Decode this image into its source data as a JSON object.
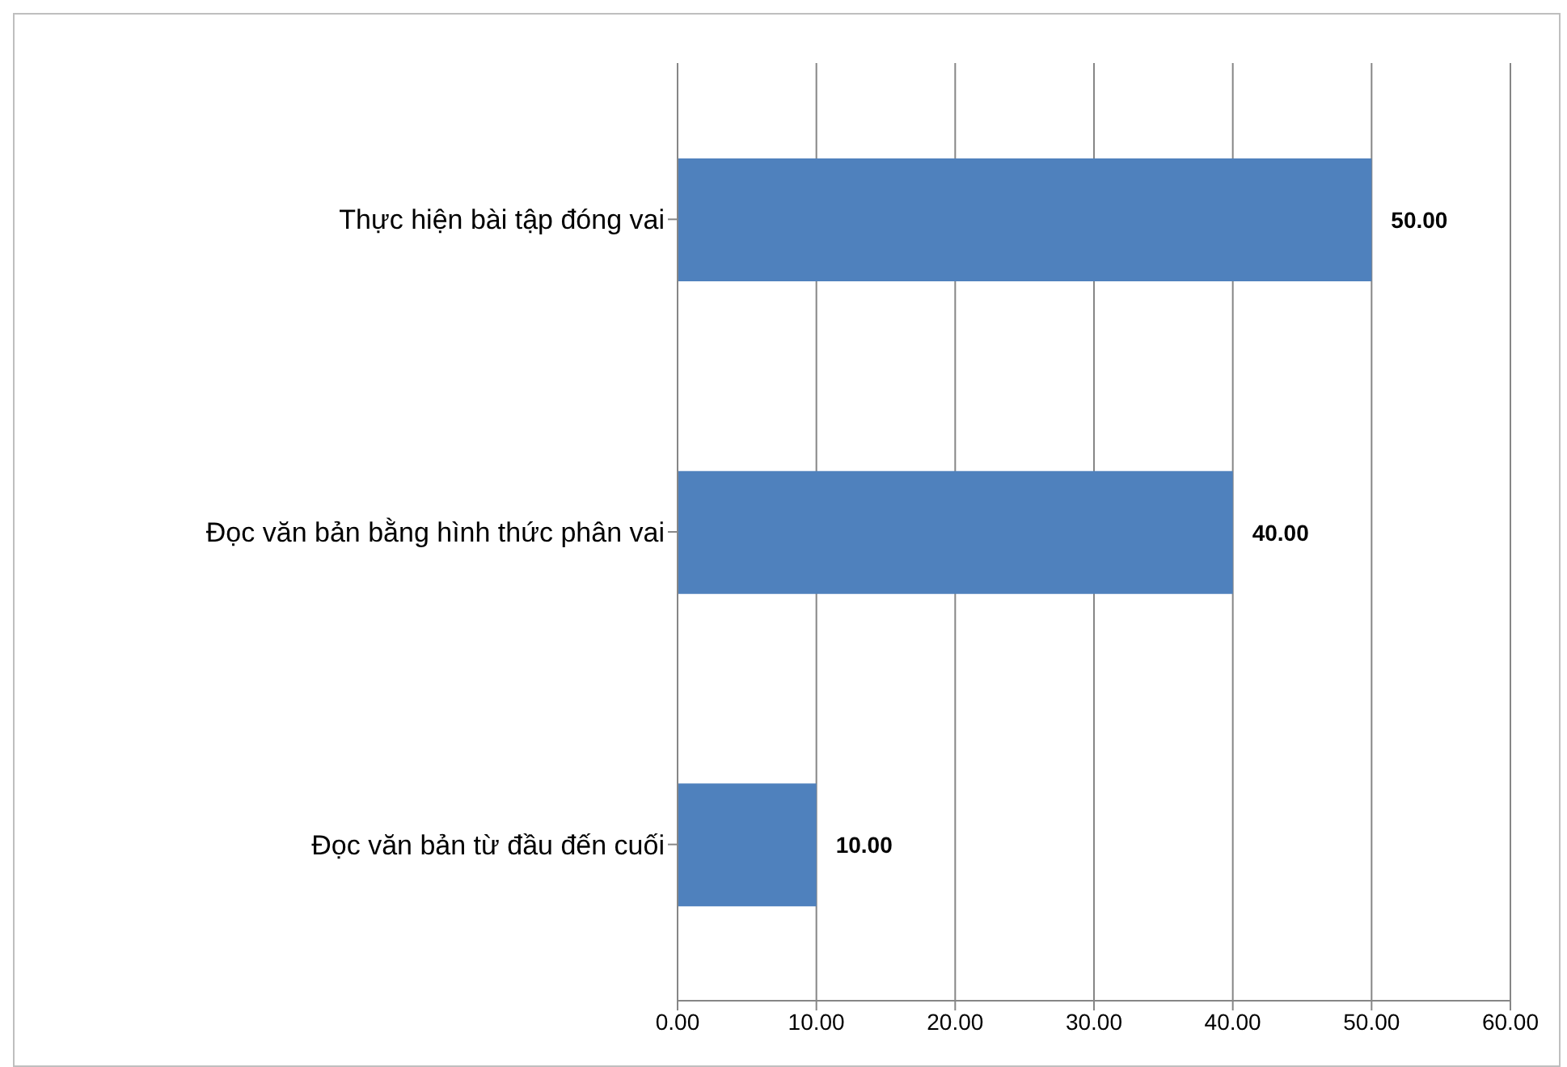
{
  "chart_data": {
    "type": "bar",
    "orientation": "horizontal",
    "categories": [
      "Thực hiện bài tập đóng vai",
      "Đọc văn bản bằng hình thức phân vai",
      "Đọc văn bản từ đầu đến cuối"
    ],
    "values": [
      50,
      40,
      10
    ],
    "color": "#4f81bd",
    "value_labels": [
      "50.00",
      "40.00",
      "10.00"
    ],
    "xlim": [
      0,
      60
    ],
    "xticks": [
      {
        "value": 0,
        "label": "0.00"
      },
      {
        "value": 10,
        "label": "10.00"
      },
      {
        "value": 20,
        "label": "20.00"
      },
      {
        "value": 30,
        "label": "30.00"
      },
      {
        "value": 40,
        "label": "40.00"
      },
      {
        "value": 50,
        "label": "50.00"
      },
      {
        "value": 60,
        "label": "60.00"
      }
    ],
    "grid": "x"
  }
}
